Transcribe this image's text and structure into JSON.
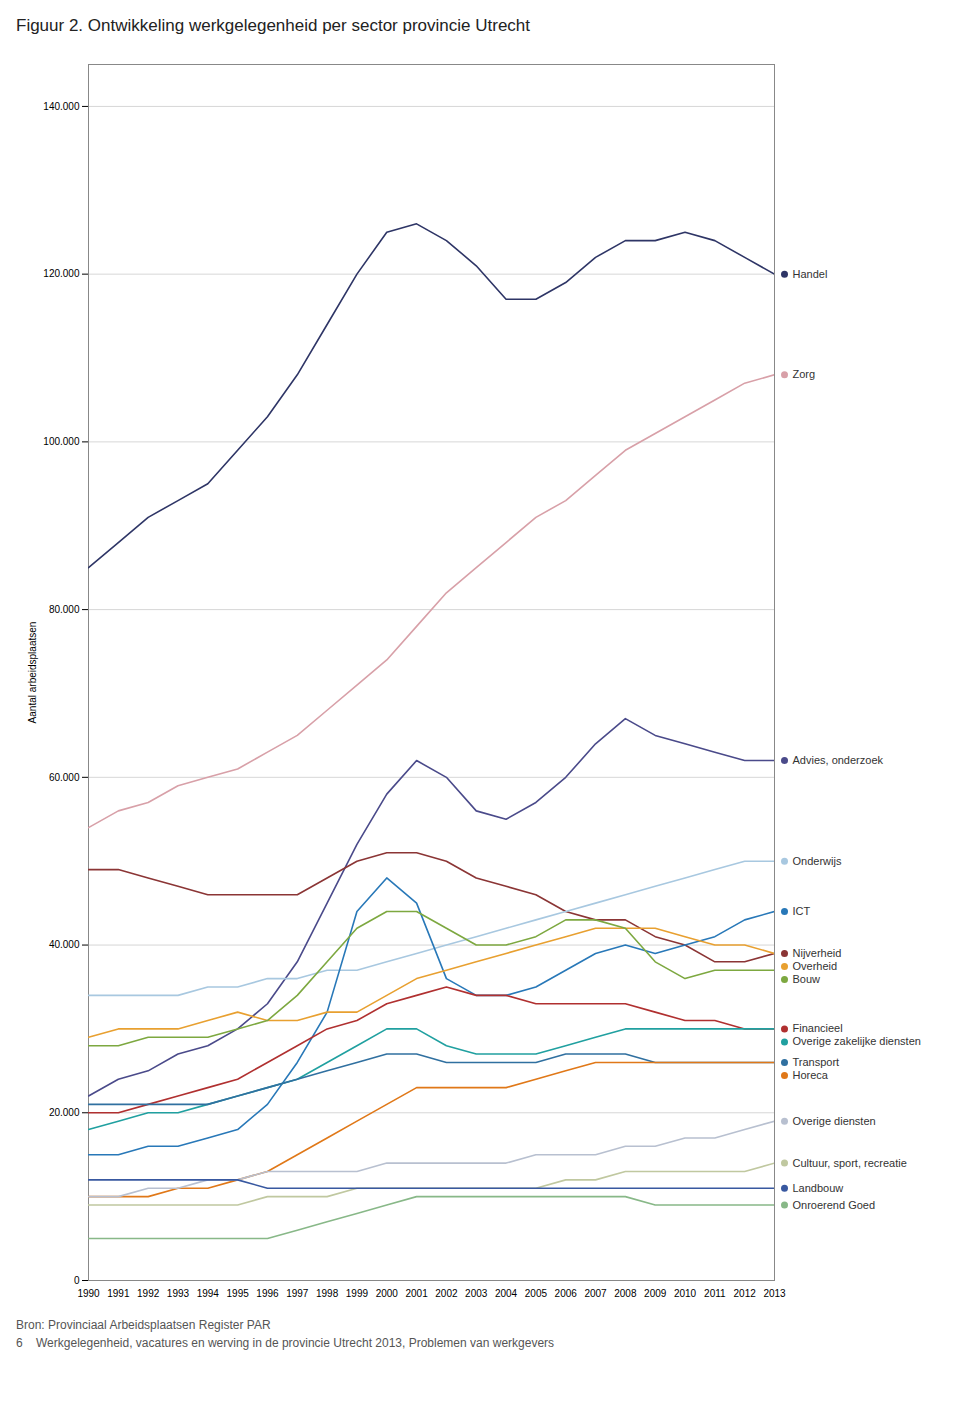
{
  "chart_data": {
    "type": "line",
    "title": "Figuur 2. Ontwikkeling werkgelegenheid per sector provincie Utrecht",
    "ylabel": "Aantal arbeidsplaatsen",
    "x": [
      1990,
      1991,
      1992,
      1993,
      1994,
      1995,
      1996,
      1997,
      1998,
      1999,
      2000,
      2001,
      2002,
      2003,
      2004,
      2005,
      2006,
      2007,
      2008,
      2009,
      2010,
      2011,
      2012,
      2013
    ],
    "xlim": [
      1990,
      2013
    ],
    "xticks": [
      1990,
      1991,
      1992,
      1993,
      1994,
      1995,
      1996,
      1997,
      1998,
      1999,
      2000,
      2001,
      2002,
      2003,
      2004,
      2005,
      2006,
      2007,
      2008,
      2009,
      2010,
      2011,
      2012,
      2013
    ],
    "ylim": [
      0,
      145000
    ],
    "yticks": [
      0,
      {
        "value": 20000,
        "label": "20.000"
      },
      {
        "value": 40000,
        "label": "40.000"
      },
      {
        "value": 60000,
        "label": "60.000"
      },
      {
        "value": 80000,
        "label": "80.000"
      },
      {
        "value": 100000,
        "label": "100.000"
      },
      {
        "value": 120000,
        "label": "120.000"
      },
      {
        "value": 140000,
        "label": "140.000"
      }
    ],
    "grid": true,
    "series": [
      {
        "name": "Handel",
        "color": "#2e3566",
        "values": [
          85000,
          88000,
          91000,
          93000,
          95000,
          99000,
          103000,
          108000,
          114000,
          120000,
          125000,
          126000,
          124000,
          121000,
          117000,
          117000,
          119000,
          122000,
          124000,
          124000,
          125000,
          124000,
          122000,
          120000
        ]
      },
      {
        "name": "Zorg",
        "color": "#d8a0a8",
        "values": [
          54000,
          56000,
          57000,
          59000,
          60000,
          61000,
          63000,
          65000,
          68000,
          71000,
          74000,
          78000,
          82000,
          85000,
          88000,
          91000,
          93000,
          96000,
          99000,
          101000,
          103000,
          105000,
          107000,
          108000
        ]
      },
      {
        "name": "Advies, onderzoek",
        "color": "#4a4a8a",
        "values": [
          22000,
          24000,
          25000,
          27000,
          28000,
          30000,
          33000,
          38000,
          45000,
          52000,
          58000,
          62000,
          60000,
          56000,
          55000,
          57000,
          60000,
          64000,
          67000,
          65000,
          64000,
          63000,
          62000,
          62000
        ]
      },
      {
        "name": "Nijverheid",
        "color": "#8b3535",
        "values": [
          49000,
          49000,
          48000,
          47000,
          46000,
          46000,
          46000,
          46000,
          48000,
          50000,
          51000,
          51000,
          50000,
          48000,
          47000,
          46000,
          44000,
          43000,
          43000,
          41000,
          40000,
          38000,
          38000,
          39000
        ]
      },
      {
        "name": "Onderwijs",
        "color": "#a8c8e0",
        "values": [
          34000,
          34000,
          34000,
          34000,
          35000,
          35000,
          36000,
          36000,
          37000,
          37000,
          38000,
          39000,
          40000,
          41000,
          42000,
          43000,
          44000,
          45000,
          46000,
          47000,
          48000,
          49000,
          50000,
          50000
        ]
      },
      {
        "name": "ICT",
        "color": "#2878b8",
        "values": [
          15000,
          15000,
          16000,
          16000,
          17000,
          18000,
          21000,
          26000,
          32000,
          44000,
          48000,
          45000,
          36000,
          34000,
          34000,
          35000,
          37000,
          39000,
          40000,
          39000,
          40000,
          41000,
          43000,
          44000
        ]
      },
      {
        "name": "Overheid",
        "color": "#e8a030",
        "values": [
          29000,
          30000,
          30000,
          30000,
          31000,
          32000,
          31000,
          31000,
          32000,
          32000,
          34000,
          36000,
          37000,
          38000,
          39000,
          40000,
          41000,
          42000,
          42000,
          42000,
          41000,
          40000,
          40000,
          39000
        ]
      },
      {
        "name": "Financieel",
        "color": "#b03030",
        "values": [
          20000,
          20000,
          21000,
          22000,
          23000,
          24000,
          26000,
          28000,
          30000,
          31000,
          33000,
          34000,
          35000,
          34000,
          34000,
          33000,
          33000,
          33000,
          33000,
          32000,
          31000,
          31000,
          30000,
          30000
        ]
      },
      {
        "name": "Overige zakelijke diensten",
        "color": "#20a0a0",
        "values": [
          18000,
          19000,
          20000,
          20000,
          21000,
          22000,
          23000,
          24000,
          26000,
          28000,
          30000,
          30000,
          28000,
          27000,
          27000,
          27000,
          28000,
          29000,
          30000,
          30000,
          30000,
          30000,
          30000,
          30000
        ]
      },
      {
        "name": "Bouw",
        "color": "#7da840",
        "values": [
          28000,
          28000,
          29000,
          29000,
          29000,
          30000,
          31000,
          34000,
          38000,
          42000,
          44000,
          44000,
          42000,
          40000,
          40000,
          41000,
          43000,
          43000,
          42000,
          38000,
          36000,
          37000,
          37000,
          37000
        ]
      },
      {
        "name": "Transport",
        "color": "#3070a0",
        "values": [
          21000,
          21000,
          21000,
          21000,
          21000,
          22000,
          23000,
          24000,
          25000,
          26000,
          27000,
          27000,
          26000,
          26000,
          26000,
          26000,
          27000,
          27000,
          27000,
          26000,
          26000,
          26000,
          26000,
          26000
        ]
      },
      {
        "name": "Horeca",
        "color": "#e07818",
        "values": [
          10000,
          10000,
          10000,
          11000,
          11000,
          12000,
          13000,
          15000,
          17000,
          19000,
          21000,
          23000,
          23000,
          23000,
          23000,
          24000,
          25000,
          26000,
          26000,
          26000,
          26000,
          26000,
          26000,
          26000
        ]
      },
      {
        "name": "Overige diensten",
        "color": "#b8c0d0",
        "values": [
          10000,
          10000,
          11000,
          11000,
          12000,
          12000,
          13000,
          13000,
          13000,
          13000,
          14000,
          14000,
          14000,
          14000,
          14000,
          15000,
          15000,
          15000,
          16000,
          16000,
          17000,
          17000,
          18000,
          19000
        ]
      },
      {
        "name": "Cultuur, sport, recreatie",
        "color": "#c0c8a0",
        "values": [
          9000,
          9000,
          9000,
          9000,
          9000,
          9000,
          10000,
          10000,
          10000,
          11000,
          11000,
          11000,
          11000,
          11000,
          11000,
          11000,
          12000,
          12000,
          13000,
          13000,
          13000,
          13000,
          13000,
          14000
        ]
      },
      {
        "name": "Landbouw",
        "color": "#3858a0",
        "values": [
          12000,
          12000,
          12000,
          12000,
          12000,
          12000,
          11000,
          11000,
          11000,
          11000,
          11000,
          11000,
          11000,
          11000,
          11000,
          11000,
          11000,
          11000,
          11000,
          11000,
          11000,
          11000,
          11000,
          11000
        ]
      },
      {
        "name": "Onroerend Goed",
        "color": "#88b888",
        "values": [
          5000,
          5000,
          5000,
          5000,
          5000,
          5000,
          5000,
          6000,
          7000,
          8000,
          9000,
          10000,
          10000,
          10000,
          10000,
          10000,
          10000,
          10000,
          10000,
          9000,
          9000,
          9000,
          9000,
          9000
        ]
      }
    ],
    "annotations": [
      "Bron: Provinciaal Arbeidsplaatsen Register PAR",
      "6    Werkgelegenheid, vacatures en werving in de provincie Utrecht 2013, Problemen van werkgevers"
    ]
  }
}
